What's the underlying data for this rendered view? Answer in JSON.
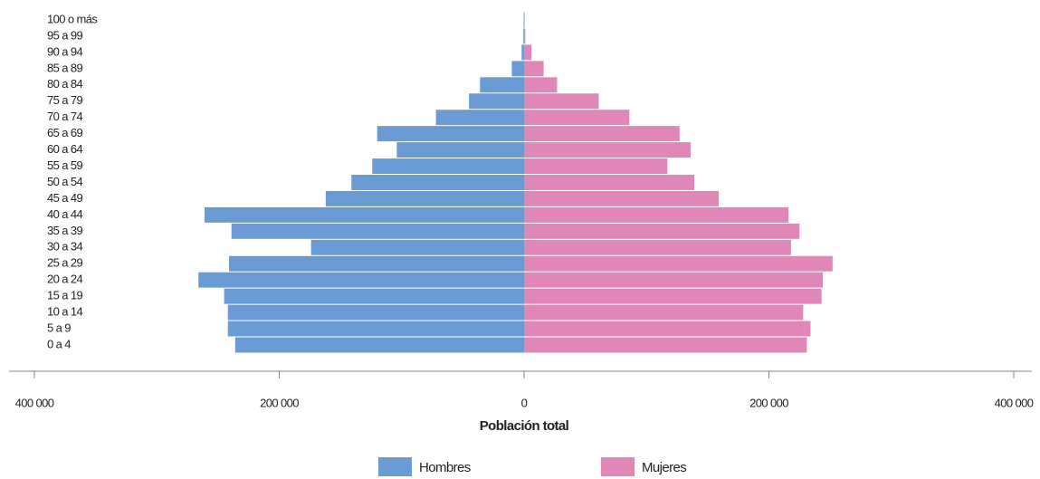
{
  "chart_data": {
    "type": "pyramid",
    "categories": [
      "100 o más",
      "95 a 99",
      "90 a 94",
      "85 a 89",
      "80 a 84",
      "75 a 79",
      "70 a 74",
      "65 a 69",
      "60 a 64",
      "55 a 59",
      "50 a 54",
      "45 a 49",
      "40 a 44",
      "35 a 39",
      "30 a 34",
      "25 a 29",
      "20 a 24",
      "15 a 19",
      "10 a 14",
      "5 a 9",
      "0 a 4"
    ],
    "series": [
      {
        "name": "Hombres",
        "color": "#6a9bd4",
        "values": [
          300,
          600,
          2000,
          10000,
          36000,
          45000,
          72000,
          120000,
          104000,
          124000,
          141000,
          162000,
          261000,
          239000,
          174000,
          241000,
          266000,
          245000,
          242000,
          242000,
          236000
        ]
      },
      {
        "name": "Mujeres",
        "color": "#e087b8",
        "values": [
          500,
          1000,
          6000,
          16000,
          27000,
          61000,
          86000,
          127000,
          136000,
          117000,
          139000,
          159000,
          216000,
          225000,
          218000,
          252000,
          244000,
          243000,
          228000,
          234000,
          231000
        ]
      }
    ],
    "xlabel": "Población total",
    "xlim": [
      0,
      400000
    ],
    "xticks": [
      {
        "value": 400000,
        "label": "400 000"
      },
      {
        "value": 200000,
        "label": "200 000"
      },
      0
    ],
    "legend": "bottom"
  }
}
